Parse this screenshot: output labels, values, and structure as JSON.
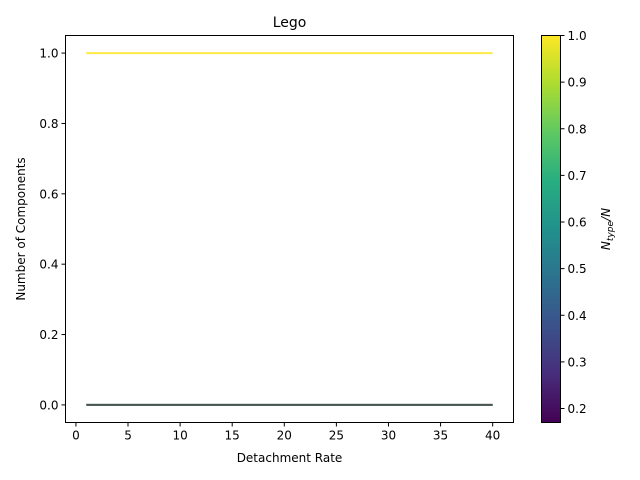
{
  "chart_data": {
    "type": "line",
    "title": "Lego",
    "xlabel": "Detachment Rate",
    "ylabel": "Number of Components",
    "xlim": [
      -1,
      42
    ],
    "ylim": [
      -0.05,
      1.05
    ],
    "xticks": [
      0,
      5,
      10,
      15,
      20,
      25,
      30,
      35,
      40
    ],
    "yticks": [
      0.0,
      0.2,
      0.4,
      0.6,
      0.8,
      1.0
    ],
    "ytick_labels": [
      "0.0",
      "0.2",
      "0.4",
      "0.6",
      "0.8",
      "1.0"
    ],
    "grid": false,
    "series": [
      {
        "color": "#fde725",
        "x": [
          1,
          40
        ],
        "values": [
          1.0,
          1.0
        ]
      },
      {
        "color": "#2a788e",
        "x": [
          1,
          40
        ],
        "values": [
          0.0,
          0.0
        ]
      },
      {
        "color": "#4a4a3f",
        "x": [
          1,
          40
        ],
        "values": [
          0.0,
          0.0
        ]
      }
    ],
    "colorbar": {
      "label_main": "N",
      "label_sub": "type",
      "label_tail": "/N",
      "range": [
        0.17,
        1.0
      ],
      "colormap": "viridis",
      "ticks": [
        0.2,
        0.3,
        0.4,
        0.5,
        0.6,
        0.7,
        0.8,
        0.9,
        1.0
      ],
      "tick_labels": [
        "0.2",
        "0.3",
        "0.4",
        "0.5",
        "0.6",
        "0.7",
        "0.8",
        "0.9",
        "1.0"
      ]
    }
  }
}
